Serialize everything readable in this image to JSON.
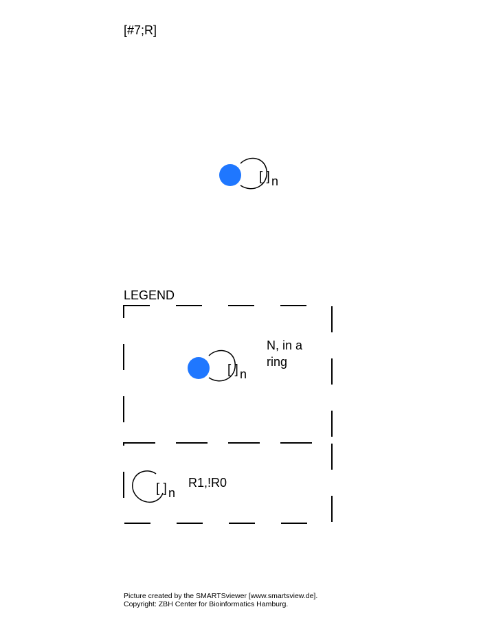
{
  "query": "[#7;R]",
  "main_diagram": {
    "atom_color": "#1f77ff",
    "ring_bracket": "[ ]",
    "ring_subscript": "n"
  },
  "legend": {
    "title": "LEGEND",
    "atom_entry": {
      "icon": "blue-atom-ring-icon",
      "description_line1": "N, in a",
      "description_line2": "ring",
      "ring_bracket": "[ ]",
      "ring_subscript": "n"
    },
    "ring_entry": {
      "icon": "ring-loop-icon",
      "label": "R1,!R0",
      "ring_bracket": "[ ]",
      "ring_subscript": "n"
    }
  },
  "footer": {
    "line1": "Picture created by the SMARTSviewer [www.smartsview.de].",
    "line2": "Copyright: ZBH Center for Bioinformatics Hamburg."
  }
}
